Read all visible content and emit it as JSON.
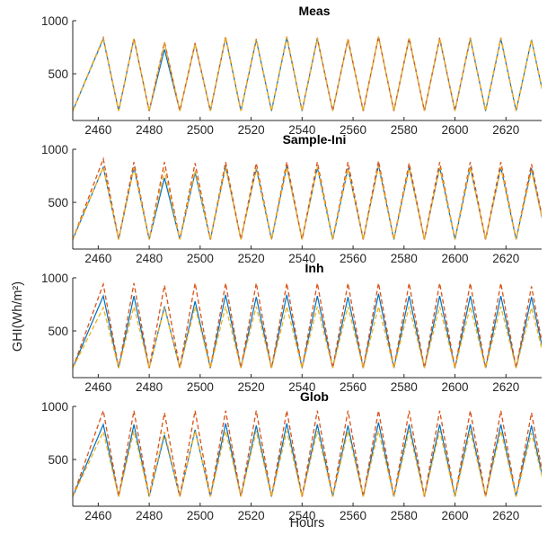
{
  "figure": {
    "xlabel": "Hours",
    "ylabel": "GHI(Wh/m²)"
  },
  "chart_data": [
    {
      "type": "line",
      "title": "Meas",
      "xlim": [
        2450,
        2634
      ],
      "ylim": [
        60,
        1000
      ],
      "xticks": [
        2460,
        2480,
        2500,
        2520,
        2540,
        2560,
        2580,
        2600,
        2620
      ],
      "yticks": [
        500,
        1000
      ],
      "series": [
        {
          "color": "#0072BD",
          "style": "solid",
          "peaks": [
            830,
            830,
            730,
            780,
            840,
            820,
            840,
            830,
            820,
            850,
            830,
            830,
            830,
            830,
            820,
            850
          ],
          "troughs": [
            150,
            150,
            150,
            150,
            150,
            150,
            150,
            150,
            150,
            150,
            150,
            150,
            150,
            150,
            150,
            150
          ]
        },
        {
          "color": "#D95319",
          "style": "dashed",
          "peaks": [
            840,
            835,
            800,
            790,
            850,
            830,
            850,
            840,
            830,
            850,
            840,
            840,
            840,
            840,
            820,
            860
          ],
          "troughs": [
            150,
            150,
            150,
            150,
            150,
            150,
            150,
            150,
            150,
            150,
            150,
            150,
            150,
            150,
            150,
            150
          ]
        },
        {
          "color": "#EDB120",
          "style": "dashed",
          "peaks": [
            835,
            830,
            790,
            785,
            845,
            825,
            845,
            835,
            825,
            850,
            835,
            835,
            835,
            835,
            820,
            855
          ],
          "troughs": [
            150,
            150,
            150,
            150,
            150,
            150,
            150,
            150,
            150,
            150,
            150,
            150,
            150,
            150,
            150,
            150
          ]
        }
      ]
    },
    {
      "type": "line",
      "title": "Sample-Ini",
      "xlim": [
        2450,
        2634
      ],
      "ylim": [
        60,
        1000
      ],
      "xticks": [
        2460,
        2480,
        2500,
        2520,
        2540,
        2560,
        2580,
        2600,
        2620
      ],
      "yticks": [
        500,
        1000
      ],
      "series": [
        {
          "color": "#0072BD",
          "style": "solid",
          "peaks": [
            830,
            830,
            730,
            780,
            840,
            820,
            840,
            830,
            820,
            850,
            830,
            830,
            830,
            830,
            820,
            790
          ],
          "troughs": [
            150,
            150,
            150,
            150,
            150,
            150,
            150,
            150,
            150,
            150,
            150,
            150,
            150,
            150,
            150,
            150
          ]
        },
        {
          "color": "#D95319",
          "style": "dashed",
          "peaks": [
            910,
            880,
            880,
            870,
            880,
            870,
            880,
            880,
            880,
            890,
            870,
            880,
            880,
            880,
            860,
            860
          ],
          "troughs": [
            150,
            150,
            150,
            150,
            150,
            150,
            150,
            150,
            150,
            150,
            150,
            150,
            150,
            150,
            150,
            150
          ]
        },
        {
          "color": "#EDB120",
          "style": "dashed",
          "peaks": [
            830,
            825,
            800,
            800,
            830,
            820,
            830,
            830,
            820,
            840,
            820,
            830,
            830,
            830,
            800,
            790
          ],
          "troughs": [
            150,
            150,
            150,
            150,
            150,
            150,
            150,
            150,
            150,
            150,
            150,
            150,
            150,
            150,
            150,
            150
          ]
        }
      ]
    },
    {
      "type": "line",
      "title": "Inh",
      "xlim": [
        2450,
        2634
      ],
      "ylim": [
        60,
        1000
      ],
      "xticks": [
        2460,
        2480,
        2500,
        2520,
        2540,
        2560,
        2580,
        2600,
        2620
      ],
      "yticks": [
        500,
        1000
      ],
      "series": [
        {
          "color": "#0072BD",
          "style": "solid",
          "peaks": [
            830,
            830,
            730,
            780,
            840,
            820,
            840,
            830,
            820,
            850,
            830,
            830,
            830,
            830,
            820,
            790
          ],
          "troughs": [
            150,
            150,
            150,
            150,
            150,
            150,
            150,
            150,
            150,
            150,
            150,
            150,
            150,
            150,
            150,
            150
          ]
        },
        {
          "color": "#D95319",
          "style": "dashed",
          "peaks": [
            940,
            950,
            930,
            950,
            950,
            950,
            950,
            950,
            950,
            950,
            950,
            950,
            950,
            950,
            920,
            950
          ],
          "troughs": [
            150,
            150,
            150,
            150,
            150,
            150,
            150,
            150,
            150,
            150,
            150,
            150,
            150,
            150,
            150,
            150
          ]
        },
        {
          "color": "#EDB120",
          "style": "dashed",
          "peaks": [
            720,
            730,
            720,
            730,
            730,
            730,
            730,
            730,
            730,
            730,
            730,
            730,
            730,
            730,
            720,
            730
          ],
          "troughs": [
            150,
            150,
            150,
            150,
            150,
            150,
            150,
            150,
            150,
            150,
            150,
            150,
            150,
            150,
            150,
            150
          ]
        }
      ]
    },
    {
      "type": "line",
      "title": "Glob",
      "xlim": [
        2450,
        2634
      ],
      "ylim": [
        60,
        1000
      ],
      "xticks": [
        2460,
        2480,
        2500,
        2520,
        2540,
        2560,
        2580,
        2600,
        2620
      ],
      "yticks": [
        500,
        1000
      ],
      "series": [
        {
          "color": "#0072BD",
          "style": "solid",
          "peaks": [
            830,
            830,
            730,
            780,
            840,
            820,
            840,
            830,
            820,
            850,
            830,
            830,
            830,
            830,
            820,
            790
          ],
          "troughs": [
            150,
            150,
            150,
            150,
            150,
            150,
            150,
            150,
            150,
            150,
            150,
            150,
            150,
            150,
            150,
            150
          ]
        },
        {
          "color": "#D95319",
          "style": "dashed",
          "peaks": [
            960,
            960,
            940,
            960,
            960,
            960,
            960,
            960,
            960,
            960,
            960,
            960,
            960,
            960,
            940,
            960
          ],
          "troughs": [
            150,
            150,
            150,
            150,
            150,
            150,
            150,
            150,
            150,
            150,
            150,
            150,
            150,
            150,
            150,
            150
          ]
        },
        {
          "color": "#EDB120",
          "style": "dashed",
          "peaks": [
            760,
            770,
            760,
            770,
            770,
            770,
            770,
            770,
            770,
            770,
            770,
            770,
            770,
            770,
            750,
            770
          ],
          "troughs": [
            150,
            150,
            150,
            150,
            150,
            150,
            150,
            150,
            150,
            150,
            150,
            150,
            150,
            150,
            150,
            150
          ]
        }
      ]
    }
  ]
}
